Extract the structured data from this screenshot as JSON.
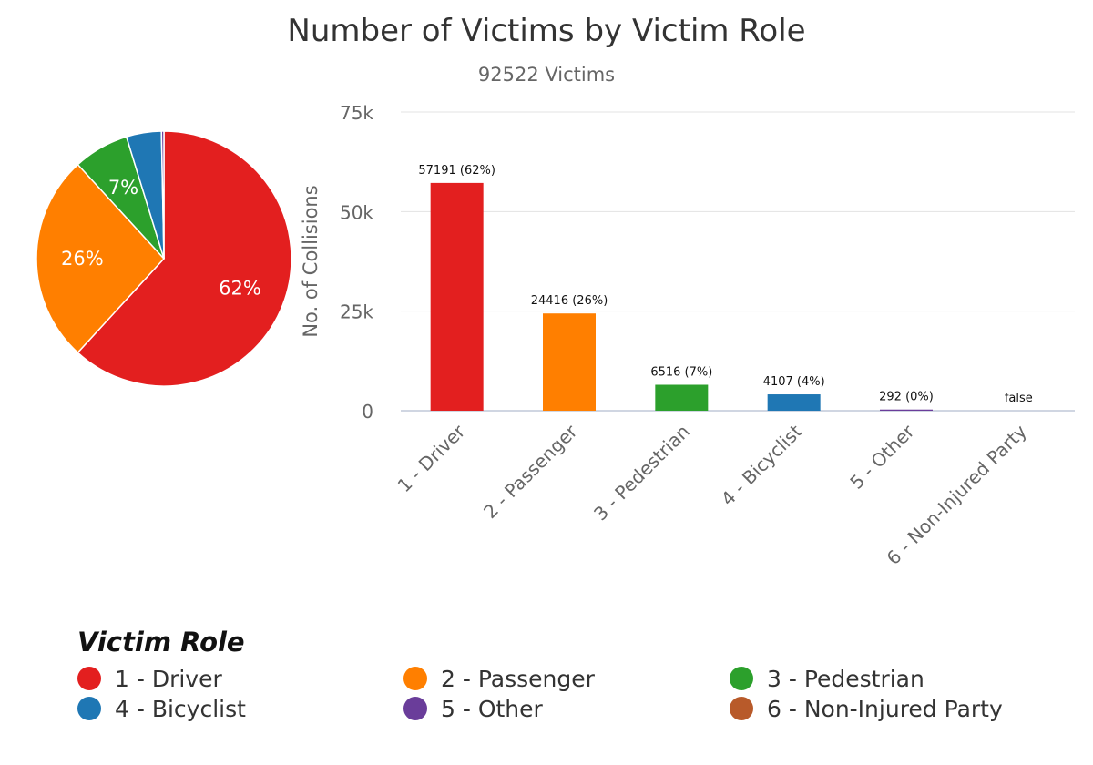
{
  "title": "Number of Victims by Victim Role",
  "subtitle": "92522 Victims",
  "legend_title": "Victim Role",
  "chart_data": [
    {
      "type": "pie",
      "categories": [
        "1 - Driver",
        "2 - Passenger",
        "3 - Pedestrian",
        "4 - Bicyclist",
        "5 - Other",
        "6 - Non-Injured Party"
      ],
      "values": [
        57191,
        24416,
        6516,
        4107,
        292,
        0
      ],
      "slice_labels": [
        "62%",
        "26%",
        "7%",
        "",
        "",
        ""
      ],
      "colors": [
        "#e31f1f",
        "#ff7f00",
        "#2ca02c",
        "#1f77b4",
        "#6a3d9a",
        "#b85a2a"
      ]
    },
    {
      "type": "bar",
      "categories": [
        "1 - Driver",
        "2 - Passenger",
        "3 - Pedestrian",
        "4 - Bicyclist",
        "5 - Other",
        "6 - Non-Injured Party"
      ],
      "values": [
        57191,
        24416,
        6516,
        4107,
        292,
        0
      ],
      "data_labels": [
        "57191 (62%)",
        "24416 (26%)",
        "6516 (7%)",
        "4107 (4%)",
        "292 (0%)",
        "false"
      ],
      "colors": [
        "#e31f1f",
        "#ff7f00",
        "#2ca02c",
        "#1f77b4",
        "#6a3d9a",
        "#b85a2a"
      ],
      "ylabel": "No. of Collisions",
      "ylim": [
        0,
        75000
      ],
      "yticks": [
        0,
        25000,
        50000,
        75000
      ],
      "ytick_labels": [
        "0",
        "25k",
        "50k",
        "75k"
      ],
      "grid": true
    }
  ]
}
